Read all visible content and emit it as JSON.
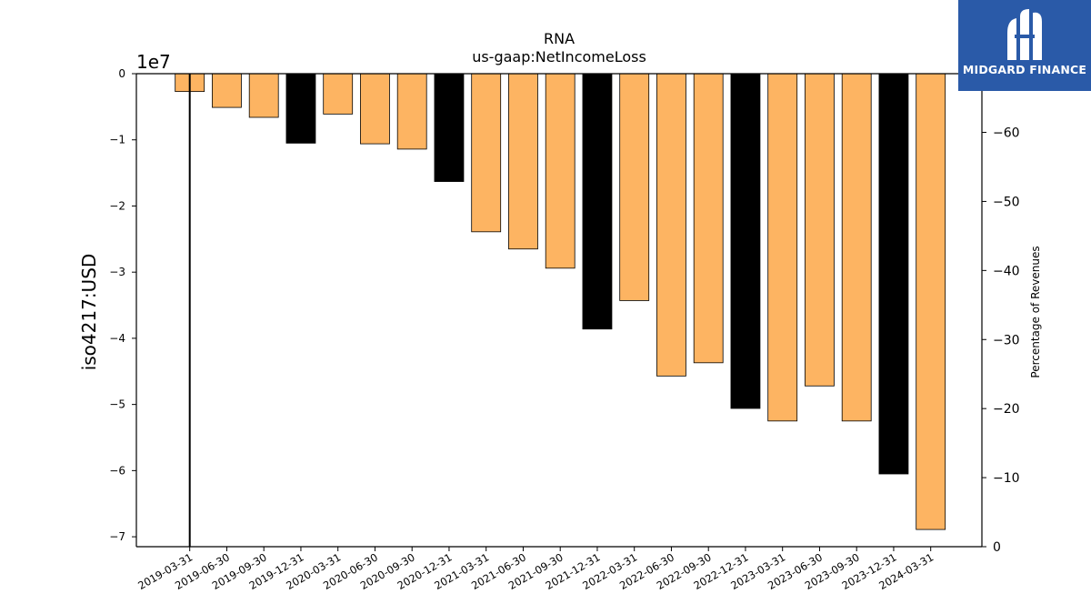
{
  "logo": {
    "text": "MIDGARD FINANCE"
  },
  "chart_data": {
    "type": "bar",
    "title": "RNA",
    "subtitle": "us-gaap:NetIncomeLoss",
    "ylabel": "iso4217:USD",
    "y2label": "Percentage of Revenues",
    "offset_label": "1e7",
    "ylim": [
      -71500000,
      0
    ],
    "y2lim": [
      0,
      -68.5
    ],
    "yticks": [
      0,
      -1,
      -2,
      -3,
      -4,
      -5,
      -6,
      -7
    ],
    "yticks_scale": 10000000,
    "y2ticks": [
      0,
      -10,
      -20,
      -30,
      -40,
      -50,
      -60
    ],
    "grid": false,
    "categories": [
      "2019-03-31",
      "2019-06-30",
      "2019-09-30",
      "2019-12-31",
      "2020-03-31",
      "2020-06-30",
      "2020-09-30",
      "2020-12-31",
      "2021-03-31",
      "2021-06-30",
      "2021-09-30",
      "2021-12-31",
      "2022-03-31",
      "2022-06-30",
      "2022-09-30",
      "2022-12-31",
      "2023-03-31",
      "2023-06-30",
      "2023-09-30",
      "2023-12-31",
      "2024-03-31"
    ],
    "values": [
      -2700000,
      -5100000,
      -6600000,
      -10500000,
      -6100000,
      -10600000,
      -11400000,
      -16300000,
      -23900000,
      -26500000,
      -29400000,
      -38600000,
      -34300000,
      -45700000,
      -43700000,
      -50600000,
      -52500000,
      -47200000,
      -52500000,
      -60500000,
      -68900000
    ],
    "annual_flags": [
      false,
      false,
      false,
      true,
      false,
      false,
      false,
      true,
      false,
      false,
      false,
      true,
      false,
      false,
      false,
      true,
      false,
      false,
      false,
      true,
      false
    ],
    "colors": {
      "quarter": "#fdb462",
      "annual": "#000000",
      "line": "#000000"
    },
    "revenue_pct_series": {
      "values": [
        0,
        null,
        null,
        null,
        null,
        null,
        null,
        null,
        null,
        null,
        null,
        null,
        null,
        null,
        null,
        null,
        null,
        null,
        null,
        null,
        null
      ]
    }
  }
}
